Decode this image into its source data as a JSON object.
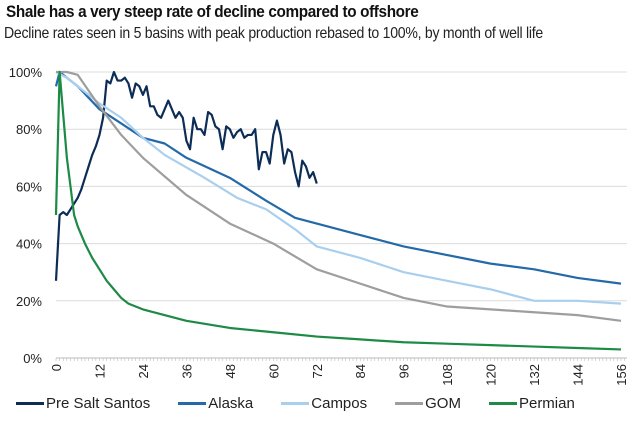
{
  "chart_data": {
    "type": "line",
    "title": "Shale has a very steep rate of decline compared to offshore",
    "subtitle": "Decline rates seen in 5 basins with peak production rebased to 100%, by month of well life",
    "xlabel": "",
    "ylabel": "",
    "xlim": [
      0,
      156
    ],
    "ylim": [
      0,
      100
    ],
    "x_ticks": [
      "0",
      "12",
      "24",
      "36",
      "48",
      "60",
      "72",
      "84",
      "96",
      "108",
      "120",
      "132",
      "144",
      "156"
    ],
    "y_ticks": [
      "0%",
      "20%",
      "40%",
      "60%",
      "80%",
      "100%"
    ],
    "grid": "horizontal",
    "legend": "bottom",
    "series": [
      {
        "name": "Pre Salt Santos",
        "color": "#0d2d57",
        "points": [
          [
            0,
            27
          ],
          [
            1,
            50
          ],
          [
            2,
            51
          ],
          [
            3,
            50
          ],
          [
            4,
            52
          ],
          [
            5,
            54
          ],
          [
            6,
            56
          ],
          [
            7,
            59
          ],
          [
            8,
            63
          ],
          [
            9,
            67
          ],
          [
            10,
            71
          ],
          [
            11,
            74
          ],
          [
            12,
            78
          ],
          [
            13,
            84
          ],
          [
            14,
            97
          ],
          [
            15,
            96
          ],
          [
            16,
            100
          ],
          [
            17,
            97
          ],
          [
            18,
            97
          ],
          [
            19,
            98
          ],
          [
            20,
            96
          ],
          [
            21,
            91
          ],
          [
            22,
            96
          ],
          [
            23,
            95
          ],
          [
            24,
            92
          ],
          [
            25,
            95
          ],
          [
            26,
            88
          ],
          [
            27,
            88
          ],
          [
            28,
            85
          ],
          [
            29,
            84
          ],
          [
            30,
            87
          ],
          [
            31,
            90
          ],
          [
            32,
            87
          ],
          [
            33,
            84
          ],
          [
            34,
            86
          ],
          [
            35,
            84
          ],
          [
            36,
            76
          ],
          [
            37,
            73
          ],
          [
            38,
            84
          ],
          [
            39,
            80
          ],
          [
            40,
            80
          ],
          [
            41,
            78
          ],
          [
            42,
            86
          ],
          [
            43,
            85
          ],
          [
            44,
            81
          ],
          [
            45,
            80
          ],
          [
            46,
            73
          ],
          [
            47,
            81
          ],
          [
            48,
            80
          ],
          [
            49,
            77
          ],
          [
            50,
            79
          ],
          [
            51,
            80
          ],
          [
            52,
            77
          ],
          [
            53,
            78
          ],
          [
            54,
            78
          ],
          [
            55,
            80
          ],
          [
            56,
            66
          ],
          [
            57,
            72
          ],
          [
            58,
            72
          ],
          [
            59,
            68
          ],
          [
            60,
            78
          ],
          [
            61,
            83
          ],
          [
            62,
            78
          ],
          [
            63,
            68
          ],
          [
            64,
            73
          ],
          [
            65,
            72
          ],
          [
            66,
            65
          ],
          [
            67,
            60
          ],
          [
            68,
            69
          ],
          [
            69,
            67
          ],
          [
            70,
            63
          ],
          [
            71,
            65
          ],
          [
            72,
            61
          ]
        ]
      },
      {
        "name": "Alaska",
        "color": "#2469a8",
        "points": [
          [
            0,
            95
          ],
          [
            1,
            100
          ],
          [
            3,
            98
          ],
          [
            6,
            95
          ],
          [
            12,
            87
          ],
          [
            18,
            82
          ],
          [
            24,
            77
          ],
          [
            30,
            75
          ],
          [
            36,
            70
          ],
          [
            48,
            63
          ],
          [
            58,
            55
          ],
          [
            66,
            49
          ],
          [
            72,
            47
          ],
          [
            84,
            43
          ],
          [
            96,
            39
          ],
          [
            108,
            36
          ],
          [
            120,
            33
          ],
          [
            132,
            31
          ],
          [
            144,
            28
          ],
          [
            156,
            26
          ]
        ]
      },
      {
        "name": "Campos",
        "color": "#a9cfee",
        "points": [
          [
            0,
            100
          ],
          [
            3,
            98
          ],
          [
            6,
            95
          ],
          [
            12,
            89
          ],
          [
            18,
            84
          ],
          [
            24,
            77
          ],
          [
            30,
            71
          ],
          [
            41,
            63
          ],
          [
            50,
            56
          ],
          [
            58,
            52
          ],
          [
            66,
            45
          ],
          [
            72,
            39
          ],
          [
            84,
            35
          ],
          [
            96,
            30
          ],
          [
            108,
            27
          ],
          [
            120,
            24
          ],
          [
            132,
            20
          ],
          [
            144,
            20
          ],
          [
            156,
            19
          ]
        ]
      },
      {
        "name": "GOM",
        "color": "#9e9e9e",
        "points": [
          [
            0,
            100
          ],
          [
            3,
            100
          ],
          [
            6,
            99
          ],
          [
            12,
            88
          ],
          [
            18,
            78
          ],
          [
            24,
            70
          ],
          [
            36,
            57
          ],
          [
            48,
            47
          ],
          [
            60,
            40
          ],
          [
            72,
            31
          ],
          [
            84,
            26
          ],
          [
            96,
            21
          ],
          [
            108,
            18
          ],
          [
            120,
            17
          ],
          [
            132,
            16
          ],
          [
            144,
            15
          ],
          [
            156,
            13
          ]
        ]
      },
      {
        "name": "Permian",
        "color": "#1d8a46",
        "points": [
          [
            0,
            50
          ],
          [
            1,
            100
          ],
          [
            2,
            85
          ],
          [
            3,
            70
          ],
          [
            4,
            60
          ],
          [
            5,
            50
          ],
          [
            6,
            46
          ],
          [
            8,
            40
          ],
          [
            10,
            35
          ],
          [
            12,
            31
          ],
          [
            14,
            27
          ],
          [
            16,
            24
          ],
          [
            18,
            21
          ],
          [
            20,
            19
          ],
          [
            24,
            17
          ],
          [
            36,
            13
          ],
          [
            48,
            10.5
          ],
          [
            60,
            9
          ],
          [
            72,
            7.5
          ],
          [
            84,
            6.5
          ],
          [
            96,
            5.5
          ],
          [
            108,
            5
          ],
          [
            120,
            4.5
          ],
          [
            132,
            4
          ],
          [
            144,
            3.5
          ],
          [
            156,
            3
          ]
        ]
      }
    ]
  }
}
